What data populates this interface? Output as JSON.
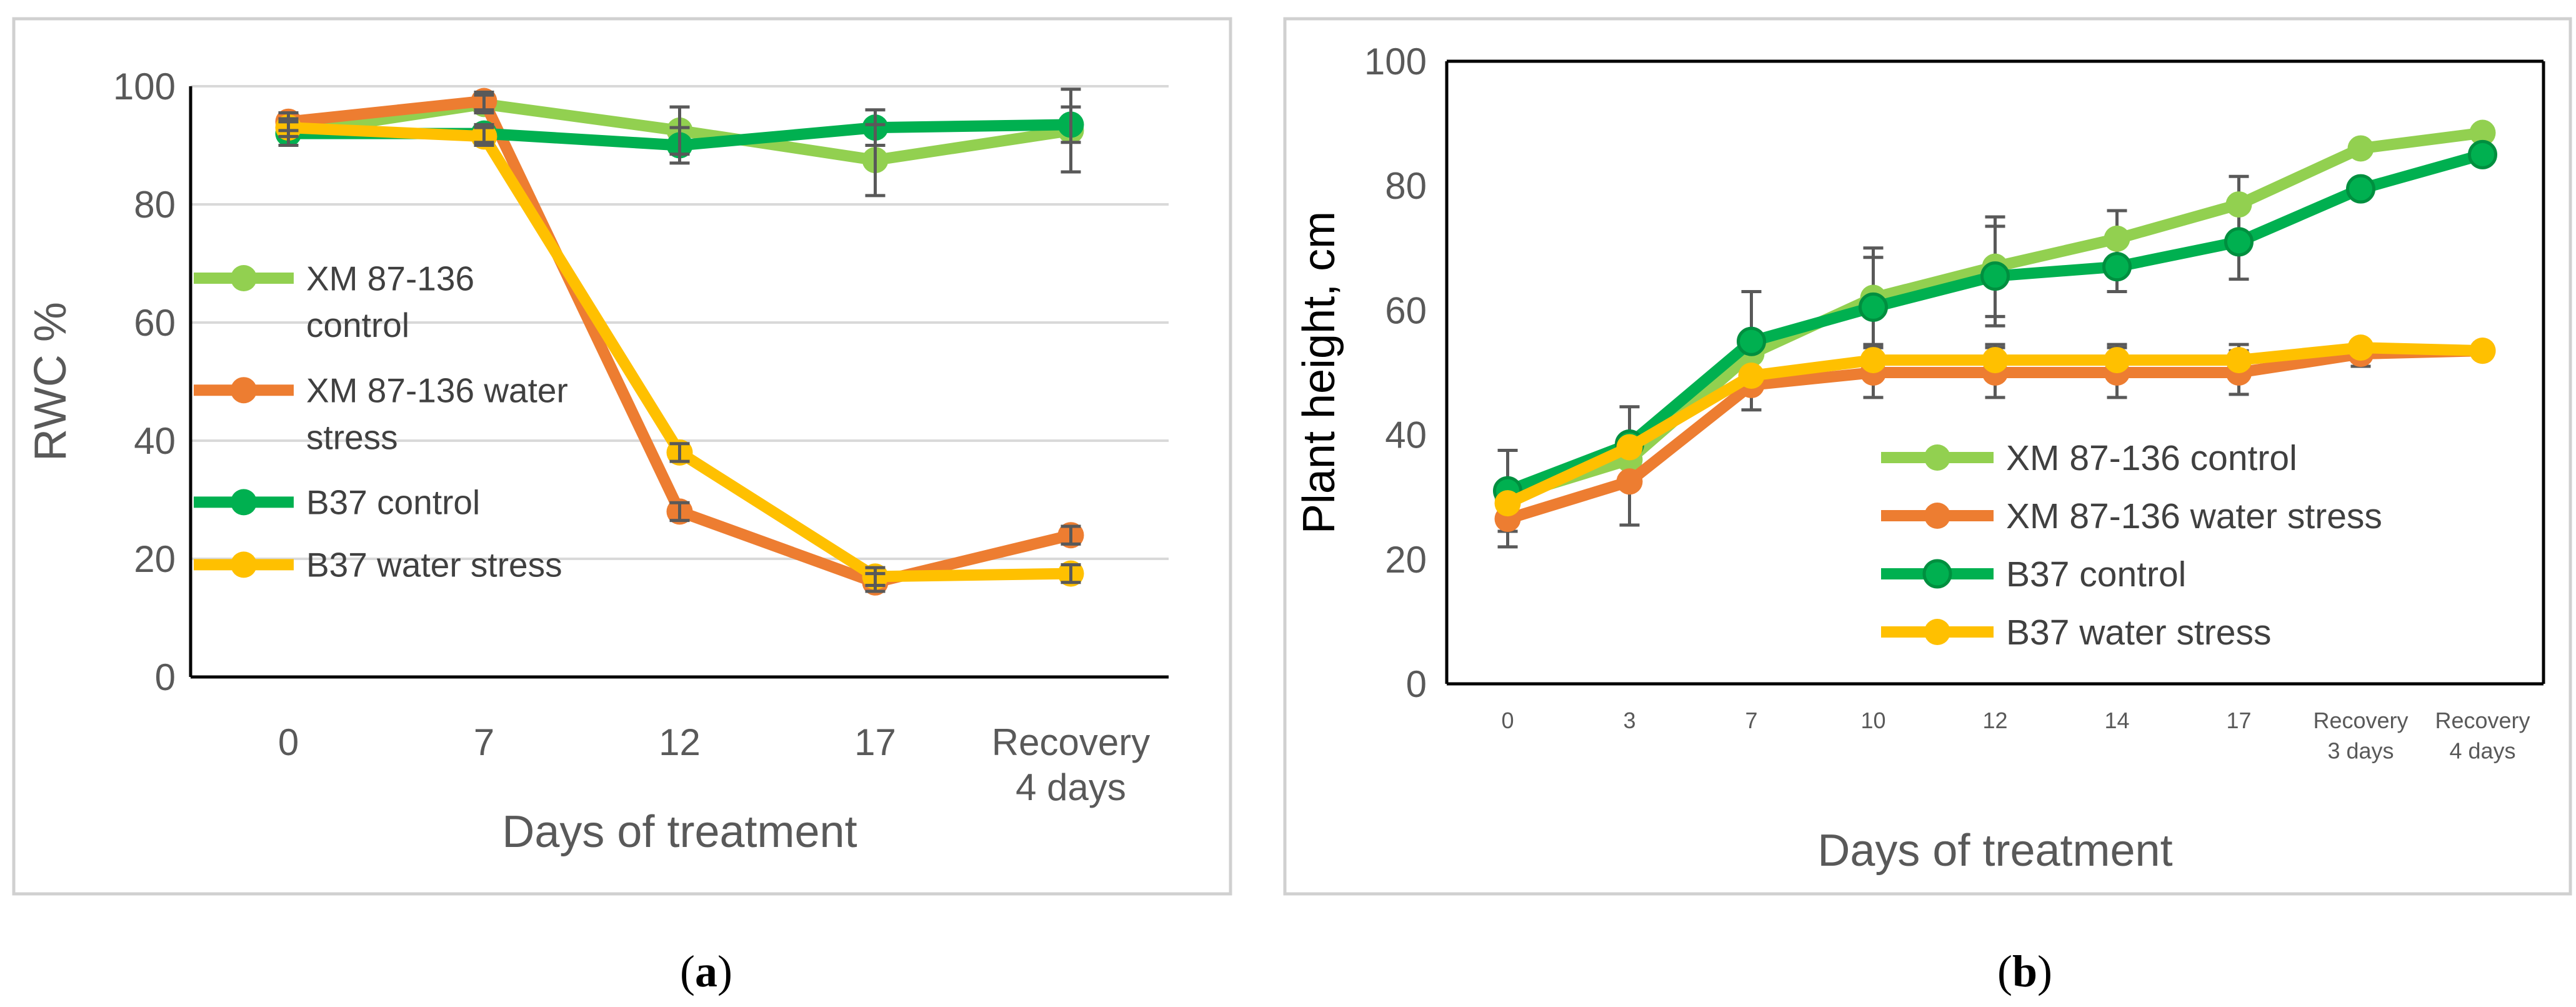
{
  "chart_data": [
    {
      "type": "line",
      "panel_label": "a",
      "title": "",
      "xlabel": "Days of treatment",
      "ylabel": "RWC %",
      "ylim": [
        0,
        100
      ],
      "yticks": [
        "0",
        "20",
        "40",
        "60",
        "80",
        "100"
      ],
      "categories": [
        [
          "0"
        ],
        [
          "7"
        ],
        [
          "12"
        ],
        [
          "17"
        ],
        [
          "Recovery",
          "4 days"
        ]
      ],
      "grid": true,
      "legend_position": "left",
      "series": [
        {
          "name": "XM 87-136 control",
          "legend_lines": [
            "XM 87-136",
            "control"
          ],
          "color": "#92d050",
          "values": [
            92,
            97,
            92.5,
            87.5,
            92.5
          ],
          "errors": [
            2,
            1.5,
            4,
            6,
            7
          ]
        },
        {
          "name": "XM 87-136 water stress",
          "legend_lines": [
            "XM 87-136 water",
            "stress"
          ],
          "color": "#ed7d31",
          "values": [
            94,
            97.5,
            28,
            16,
            24
          ],
          "errors": [
            1.5,
            1.5,
            1.5,
            1.5,
            1.5
          ]
        },
        {
          "name": "B37 control",
          "legend_lines": [
            "B37 control"
          ],
          "color": "#00b050",
          "values": [
            92,
            92,
            90,
            93,
            93.5
          ],
          "errors": [
            2,
            1.5,
            3,
            3,
            3
          ]
        },
        {
          "name": "B37 water stress",
          "legend_lines": [
            "B37 water stress"
          ],
          "color": "#ffc000",
          "values": [
            93,
            91.5,
            38,
            17,
            17.5
          ],
          "errors": [
            1.5,
            1.5,
            1.5,
            1.5,
            1.5
          ]
        }
      ]
    },
    {
      "type": "line",
      "panel_label": "b",
      "title": "",
      "xlabel": "Days of treatment",
      "ylabel": "Plant height, cm",
      "ylim": [
        0,
        100
      ],
      "yticks": [
        "0",
        "20",
        "40",
        "60",
        "80",
        "100"
      ],
      "categories": [
        [
          "0"
        ],
        [
          "3"
        ],
        [
          "7"
        ],
        [
          "10"
        ],
        [
          "12"
        ],
        [
          "14"
        ],
        [
          "17"
        ],
        [
          "Recovery",
          "3 days"
        ],
        [
          "Recovery",
          "4 days"
        ]
      ],
      "grid": false,
      "legend_position": "bottom-right",
      "series": [
        {
          "name": "XM 87-136 control",
          "legend_lines": [
            "XM 87-136 control"
          ],
          "color": "#92d050",
          "values": [
            30,
            36,
            53,
            62,
            67,
            71.5,
            77,
            86,
            88.5
          ],
          "errors": [
            0,
            0,
            0,
            8,
            8,
            4.5,
            4.5,
            0,
            0
          ]
        },
        {
          "name": "XM 87-136 water stress",
          "legend_lines": [
            "XM 87-136 water stress"
          ],
          "color": "#ed7d31",
          "values": [
            26.5,
            32.5,
            48,
            50,
            50,
            50,
            50,
            53,
            53.5
          ],
          "errors": [
            4.5,
            7,
            4,
            4,
            4,
            4,
            3.5,
            2,
            1
          ]
        },
        {
          "name": "B37 control",
          "legend_lines": [
            "B37 control"
          ],
          "color": "#00b050",
          "values": [
            31,
            38.5,
            55,
            60.5,
            65.5,
            67,
            71,
            79.5,
            85
          ],
          "errors": [
            6.5,
            6,
            8,
            8,
            8,
            4,
            6,
            0,
            0
          ]
        },
        {
          "name": "B37 water stress",
          "legend_lines": [
            "B37 water stress"
          ],
          "color": "#ffc000",
          "values": [
            29,
            38,
            49.5,
            52,
            52,
            52,
            52,
            54,
            53.5
          ],
          "errors": [
            0,
            0,
            0,
            2.5,
            2.5,
            2.5,
            2.5,
            1,
            0
          ]
        }
      ]
    }
  ]
}
